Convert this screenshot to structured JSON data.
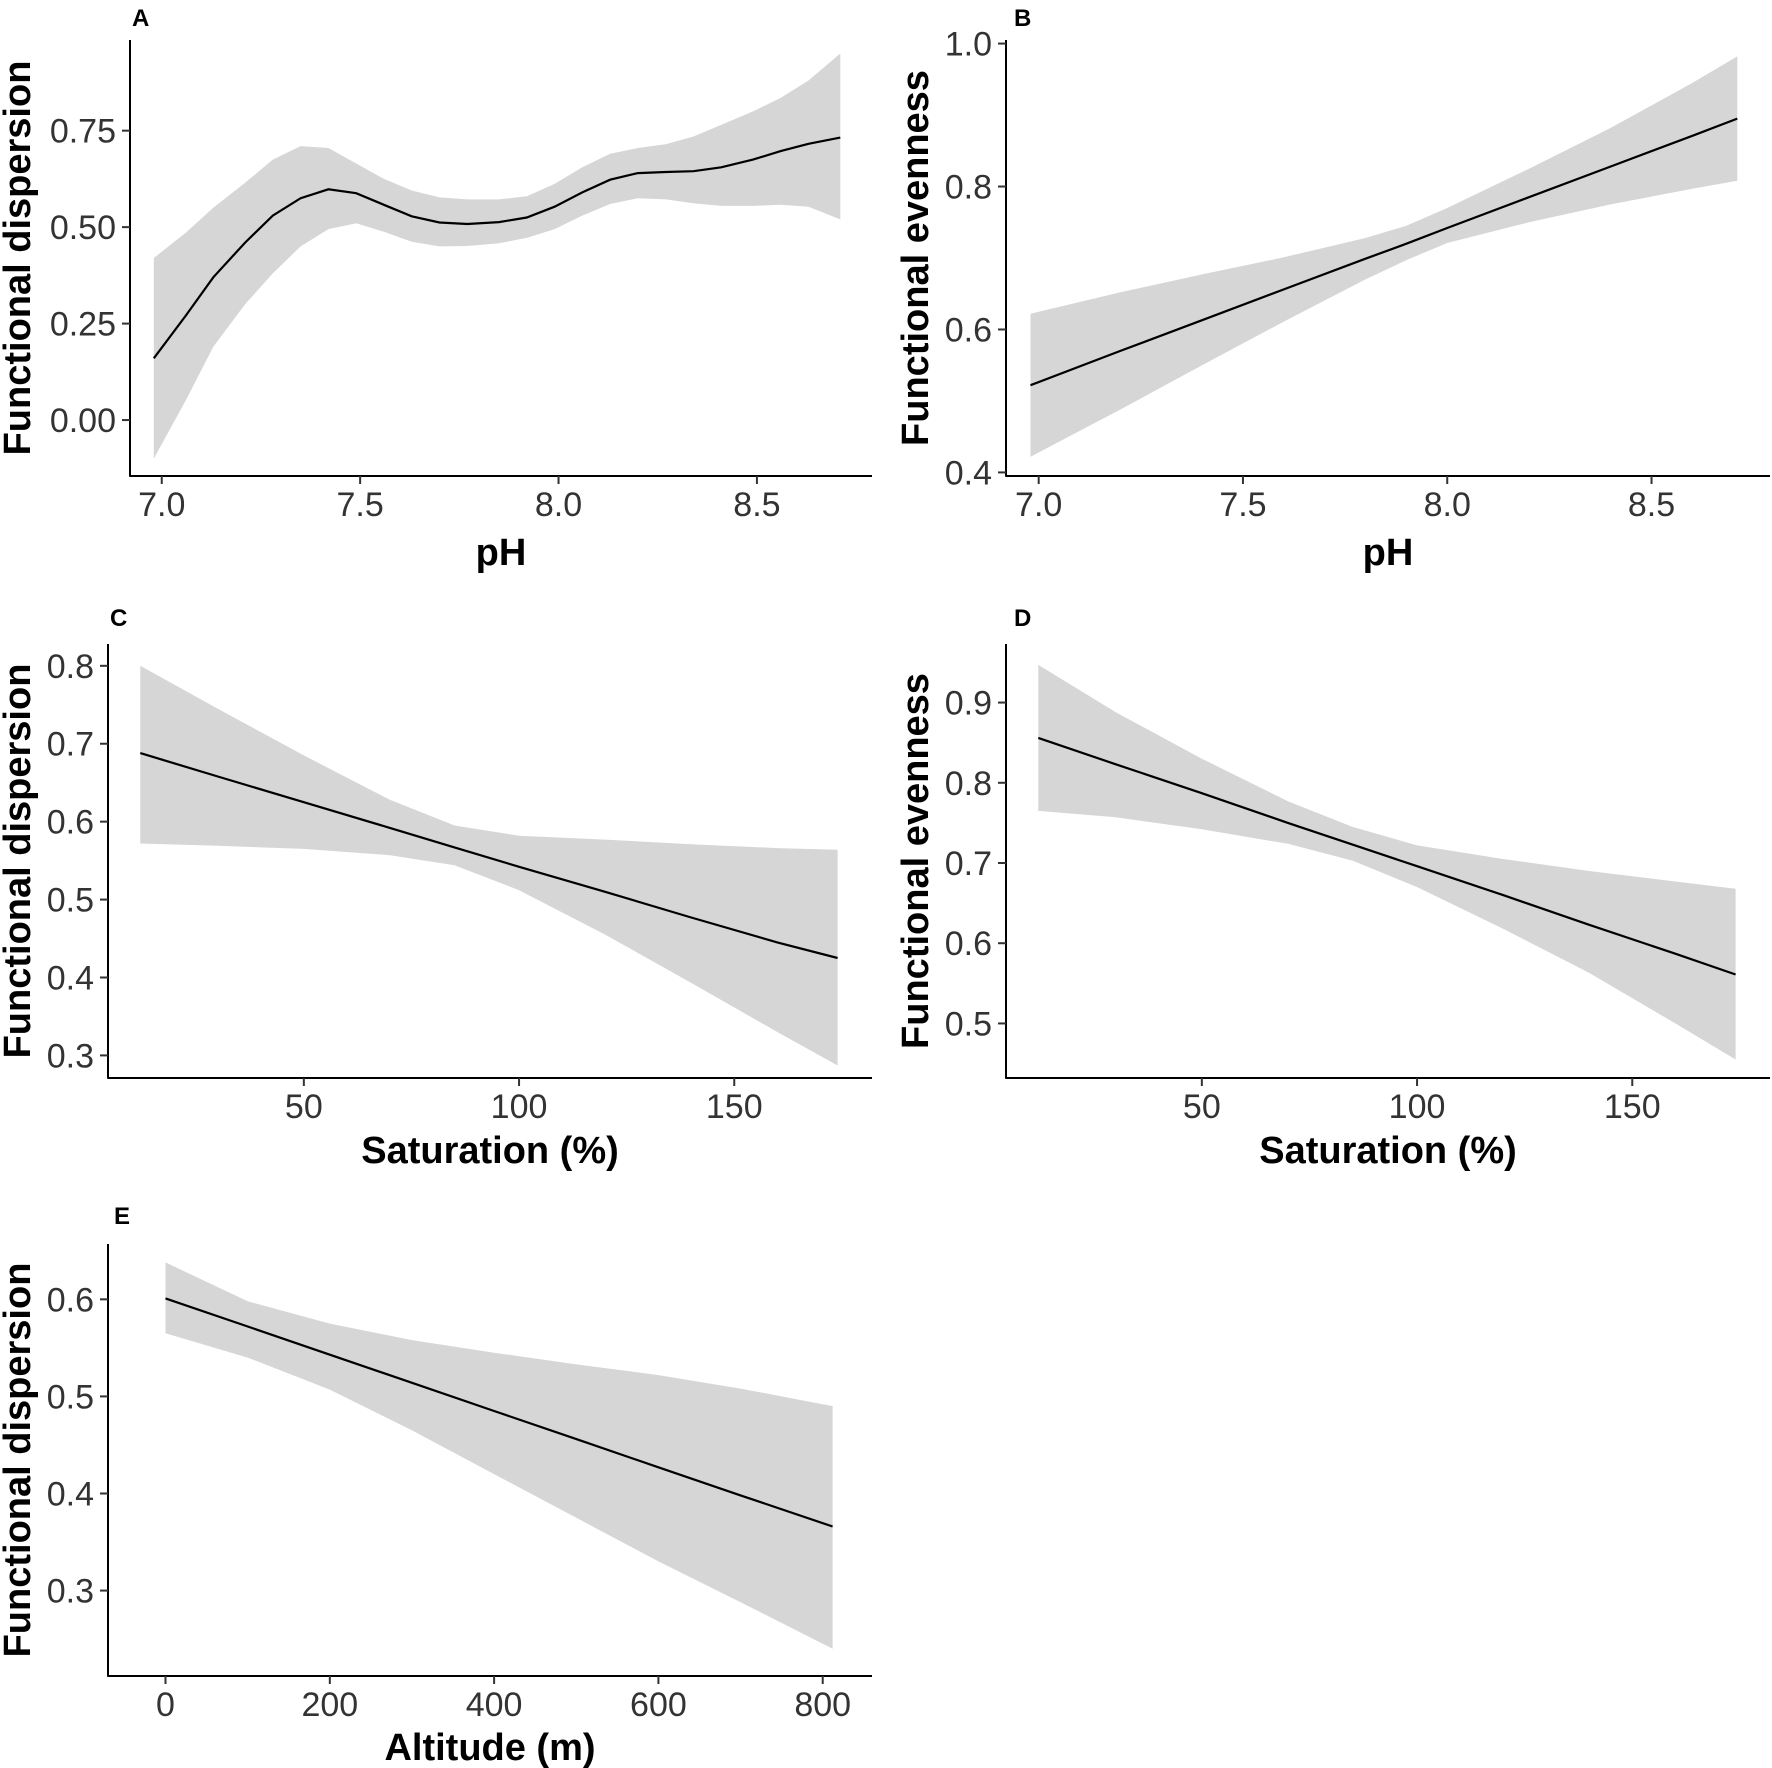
{
  "chart_data": [
    {
      "panel": "A",
      "type": "line",
      "xlabel": "pH",
      "ylabel": "Functional dispersion",
      "xlim": [
        6.92,
        8.79
      ],
      "ylim": [
        -0.145,
        0.985
      ],
      "xticks": [
        7.0,
        7.5,
        8.0,
        8.5
      ],
      "xtick_labels": [
        "7.0",
        "7.5",
        "8.0",
        "8.5"
      ],
      "yticks": [
        0.0,
        0.25,
        0.5,
        0.75
      ],
      "ytick_labels": [
        "0.00",
        "0.25",
        "0.50",
        "0.75"
      ],
      "x": [
        6.98,
        7.06,
        7.13,
        7.21,
        7.28,
        7.35,
        7.42,
        7.49,
        7.56,
        7.63,
        7.7,
        7.77,
        7.85,
        7.92,
        7.99,
        8.06,
        8.13,
        8.2,
        8.27,
        8.34,
        8.41,
        8.49,
        8.56,
        8.63,
        8.71
      ],
      "fit": [
        0.16,
        0.27,
        0.37,
        0.46,
        0.53,
        0.575,
        0.598,
        0.588,
        0.558,
        0.528,
        0.512,
        0.508,
        0.513,
        0.525,
        0.553,
        0.59,
        0.623,
        0.64,
        0.643,
        0.645,
        0.655,
        0.675,
        0.697,
        0.716,
        0.732
      ],
      "lower": [
        -0.1,
        0.05,
        0.19,
        0.3,
        0.38,
        0.45,
        0.495,
        0.51,
        0.488,
        0.462,
        0.45,
        0.451,
        0.458,
        0.472,
        0.495,
        0.53,
        0.56,
        0.575,
        0.572,
        0.562,
        0.555,
        0.555,
        0.558,
        0.553,
        0.52
      ],
      "upper": [
        0.42,
        0.485,
        0.55,
        0.615,
        0.675,
        0.71,
        0.705,
        0.665,
        0.625,
        0.595,
        0.577,
        0.572,
        0.572,
        0.58,
        0.612,
        0.655,
        0.69,
        0.705,
        0.715,
        0.735,
        0.765,
        0.8,
        0.835,
        0.88,
        0.95
      ]
    },
    {
      "panel": "B",
      "type": "line",
      "xlabel": "pH",
      "ylabel": "Functional evenness",
      "xlim": [
        6.92,
        8.79
      ],
      "ylim": [
        0.395,
        1.005
      ],
      "xticks": [
        7.0,
        7.5,
        8.0,
        8.5
      ],
      "xtick_labels": [
        "7.0",
        "7.5",
        "8.0",
        "8.5"
      ],
      "yticks": [
        0.4,
        0.6,
        0.8,
        1.0
      ],
      "ytick_labels": [
        "0.4",
        "0.6",
        "0.8",
        "1.0"
      ],
      "x": [
        6.98,
        7.2,
        7.4,
        7.6,
        7.8,
        7.9,
        8.0,
        8.2,
        8.4,
        8.6,
        8.71
      ],
      "fit": [
        0.522,
        0.57,
        0.613,
        0.656,
        0.699,
        0.72,
        0.742,
        0.785,
        0.828,
        0.871,
        0.895
      ],
      "lower": [
        0.422,
        0.488,
        0.55,
        0.611,
        0.67,
        0.697,
        0.721,
        0.75,
        0.775,
        0.797,
        0.808
      ],
      "upper": [
        0.622,
        0.652,
        0.677,
        0.701,
        0.728,
        0.745,
        0.77,
        0.825,
        0.882,
        0.945,
        0.982
      ]
    },
    {
      "panel": "C",
      "type": "line",
      "xlabel": "Saturation (%)",
      "ylabel": "Functional dispersion",
      "xlim": [
        4.5,
        182
      ],
      "ylim": [
        0.271,
        0.828
      ],
      "xticks": [
        50,
        100,
        150
      ],
      "xtick_labels": [
        "50",
        "100",
        "150"
      ],
      "yticks": [
        0.3,
        0.4,
        0.5,
        0.6,
        0.7,
        0.8
      ],
      "ytick_labels": [
        "0.3",
        "0.4",
        "0.5",
        "0.6",
        "0.7",
        "0.8"
      ],
      "x": [
        12,
        30,
        50,
        70,
        85,
        100,
        120,
        140,
        160,
        174
      ],
      "fit": [
        0.688,
        0.658,
        0.625,
        0.592,
        0.567,
        0.542,
        0.51,
        0.477,
        0.445,
        0.425
      ],
      "lower": [
        0.572,
        0.569,
        0.565,
        0.557,
        0.544,
        0.512,
        0.455,
        0.393,
        0.33,
        0.287
      ],
      "upper": [
        0.8,
        0.745,
        0.685,
        0.628,
        0.595,
        0.582,
        0.577,
        0.571,
        0.566,
        0.564
      ]
    },
    {
      "panel": "D",
      "type": "line",
      "xlabel": "Saturation (%)",
      "ylabel": "Functional evenness",
      "xlim": [
        4.5,
        182
      ],
      "ylim": [
        0.432,
        0.973
      ],
      "xticks": [
        50,
        100,
        150
      ],
      "xtick_labels": [
        "50",
        "100",
        "150"
      ],
      "yticks": [
        0.5,
        0.6,
        0.7,
        0.8,
        0.9
      ],
      "ytick_labels": [
        "0.5",
        "0.6",
        "0.7",
        "0.8",
        "0.9"
      ],
      "x": [
        12,
        30,
        50,
        70,
        85,
        100,
        120,
        140,
        160,
        174
      ],
      "fit": [
        0.856,
        0.823,
        0.787,
        0.75,
        0.723,
        0.696,
        0.66,
        0.623,
        0.587,
        0.561
      ],
      "lower": [
        0.765,
        0.757,
        0.742,
        0.724,
        0.703,
        0.67,
        0.618,
        0.563,
        0.5,
        0.455
      ],
      "upper": [
        0.947,
        0.888,
        0.83,
        0.777,
        0.745,
        0.722,
        0.705,
        0.69,
        0.677,
        0.668
      ]
    },
    {
      "panel": "E",
      "type": "line",
      "xlabel": "Altitude (m)",
      "ylabel": "Functional dispersion",
      "xlim": [
        -70,
        860
      ],
      "ylim": [
        0.212,
        0.657
      ],
      "xticks": [
        0,
        200,
        400,
        600,
        800
      ],
      "xtick_labels": [
        "0",
        "200",
        "400",
        "600",
        "800"
      ],
      "yticks": [
        0.3,
        0.4,
        0.5,
        0.6
      ],
      "ytick_labels": [
        "0.3",
        "0.4",
        "0.5",
        "0.6"
      ],
      "x": [
        0,
        100,
        200,
        300,
        400,
        500,
        600,
        700,
        812
      ],
      "fit": [
        0.601,
        0.572,
        0.543,
        0.514,
        0.485,
        0.456,
        0.427,
        0.398,
        0.366
      ],
      "lower": [
        0.565,
        0.54,
        0.507,
        0.465,
        0.42,
        0.375,
        0.33,
        0.288,
        0.24
      ],
      "upper": [
        0.638,
        0.598,
        0.575,
        0.558,
        0.545,
        0.533,
        0.522,
        0.508,
        0.49
      ]
    }
  ]
}
